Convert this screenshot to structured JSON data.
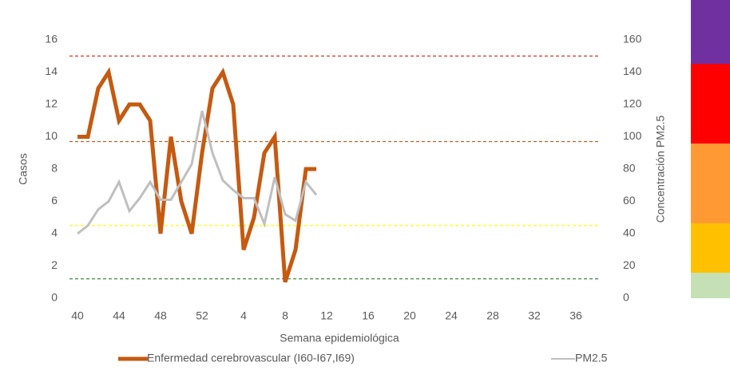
{
  "chart_data": {
    "type": "line",
    "x_label": "Semana epidemiológica",
    "y_label": "Casos",
    "y2_label": "Concentración PM2.5",
    "categories": [
      "40",
      null,
      null,
      null,
      "44",
      null,
      null,
      null,
      "48",
      null,
      null,
      null,
      "52",
      null,
      null,
      null,
      "4",
      null,
      null,
      null,
      "8",
      null,
      null,
      null,
      "12",
      null,
      null,
      null,
      "16",
      null,
      null,
      null,
      "20",
      null,
      null,
      null,
      "24",
      null,
      null,
      null,
      "28",
      null,
      null,
      null,
      "32",
      null,
      null,
      null,
      "36",
      null,
      null,
      null
    ],
    "series": [
      {
        "name": "Enfermedad cerebrovascular (I60-I67,I69)",
        "color": "#c55a11",
        "axis": "y",
        "values": [
          10,
          10,
          13,
          14,
          11,
          12,
          12,
          11,
          4,
          10,
          6,
          4,
          9,
          13,
          14,
          12,
          3,
          5,
          9,
          10,
          1,
          3,
          8,
          8,
          null,
          null,
          null,
          null,
          null,
          null,
          null,
          null,
          null,
          null,
          null,
          null,
          null,
          null,
          null,
          null,
          null,
          null,
          null,
          null,
          null,
          null,
          null,
          null,
          null,
          null,
          null,
          null
        ]
      },
      {
        "name": "PM2.5",
        "color": "#bfbfbf",
        "axis": "y2",
        "values": [
          40,
          45,
          55,
          60,
          72,
          54,
          62,
          72,
          61,
          61,
          72,
          83,
          116,
          90,
          73,
          67,
          62,
          62,
          46,
          75,
          52,
          48,
          72,
          64,
          null,
          null,
          null,
          null,
          null,
          null,
          null,
          null,
          null,
          null,
          null,
          null,
          null,
          null,
          null,
          null,
          null,
          null,
          null,
          null,
          null,
          null,
          null,
          null,
          null,
          null,
          null,
          null
        ]
      }
    ],
    "reference_lines": [
      {
        "value": 150,
        "color": "#e03030"
      },
      {
        "value": 97,
        "color": "#c55a11"
      },
      {
        "value": 45,
        "color": "#ffff00"
      },
      {
        "value": 12,
        "color": "#2e7d32"
      }
    ],
    "ylim": [
      0,
      16
    ],
    "yticks": [
      0,
      2,
      4,
      6,
      8,
      10,
      12,
      14,
      16
    ],
    "y2lim": [
      0,
      160
    ],
    "y2ticks": [
      0,
      20,
      40,
      60,
      80,
      100,
      120,
      140,
      160
    ]
  }
}
